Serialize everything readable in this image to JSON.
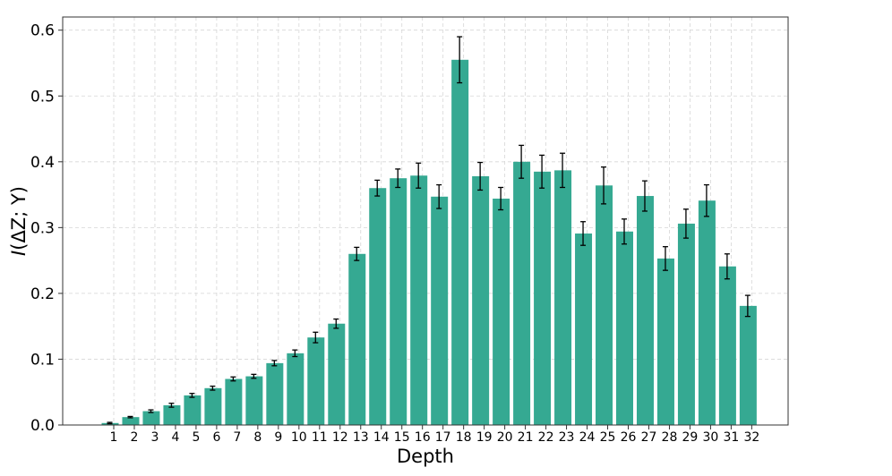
{
  "chart_data": {
    "type": "bar",
    "title": "",
    "xlabel": "Depth",
    "ylabel": "I(ΔZ; Y)",
    "ylim": [
      0,
      0.62
    ],
    "yticks": [
      "0.0",
      "0.1",
      "0.2",
      "0.3",
      "0.4",
      "0.5",
      "0.6"
    ],
    "grid": true,
    "bar_color": "#35a992",
    "categories": [
      "1",
      "2",
      "3",
      "4",
      "5",
      "6",
      "7",
      "8",
      "9",
      "10",
      "11",
      "12",
      "13",
      "14",
      "15",
      "16",
      "17",
      "18",
      "19",
      "20",
      "21",
      "22",
      "23",
      "24",
      "25",
      "26",
      "27",
      "28",
      "29",
      "30",
      "31",
      "32"
    ],
    "values": [
      0.003,
      0.012,
      0.021,
      0.03,
      0.045,
      0.056,
      0.07,
      0.074,
      0.094,
      0.109,
      0.133,
      0.154,
      0.26,
      0.36,
      0.375,
      0.379,
      0.347,
      0.555,
      0.378,
      0.344,
      0.4,
      0.385,
      0.387,
      0.291,
      0.364,
      0.294,
      0.348,
      0.253,
      0.306,
      0.341,
      0.241,
      0.181
    ],
    "errors": [
      0.001,
      0.001,
      0.002,
      0.003,
      0.003,
      0.003,
      0.003,
      0.003,
      0.004,
      0.005,
      0.008,
      0.007,
      0.01,
      0.012,
      0.014,
      0.019,
      0.018,
      0.035,
      0.021,
      0.017,
      0.025,
      0.025,
      0.026,
      0.018,
      0.028,
      0.019,
      0.023,
      0.018,
      0.022,
      0.024,
      0.019,
      0.016
    ]
  }
}
